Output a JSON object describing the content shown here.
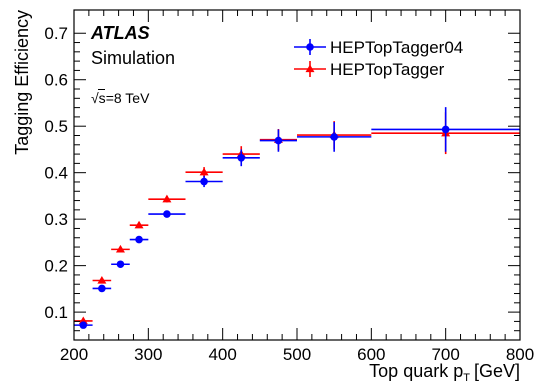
{
  "chart_data": {
    "type": "scatter",
    "xlabel": "Top quark p",
    "xlabel_sub": "T",
    "xlabel_unit": "[GeV]",
    "ylabel": "Tagging Efficiency",
    "xlim": [
      200,
      800
    ],
    "ylim": [
      0.04,
      0.75
    ],
    "x_ticks": [
      200,
      300,
      400,
      500,
      600,
      700,
      800
    ],
    "y_ticks": [
      0.1,
      0.2,
      0.3,
      0.4,
      0.5,
      0.6,
      0.7
    ],
    "y_tick_labels": [
      "0.1",
      "0.2",
      "0.3",
      "0.4",
      "0.5",
      "0.6",
      "0.7"
    ],
    "annotations": {
      "experiment": "ATLAS",
      "status": "Simulation",
      "energy_sqrt": "√s",
      "energy_value": "=8 TeV"
    },
    "legend_position": "top-right",
    "series": [
      {
        "name": "HEPTopTagger04",
        "color": "#0000ff",
        "marker": "circle",
        "points": [
          {
            "x": 212.5,
            "xlo": 200,
            "xhi": 225,
            "y": 0.072,
            "yerr": 0.006
          },
          {
            "x": 237.5,
            "xlo": 225,
            "xhi": 250,
            "y": 0.151,
            "yerr": 0.006
          },
          {
            "x": 262.5,
            "xlo": 250,
            "xhi": 275,
            "y": 0.203,
            "yerr": 0.006
          },
          {
            "x": 287.5,
            "xlo": 275,
            "xhi": 300,
            "y": 0.256,
            "yerr": 0.007
          },
          {
            "x": 325,
            "xlo": 300,
            "xhi": 350,
            "y": 0.311,
            "yerr": 0.007
          },
          {
            "x": 375,
            "xlo": 350,
            "xhi": 400,
            "y": 0.381,
            "yerr": 0.012
          },
          {
            "x": 425,
            "xlo": 400,
            "xhi": 450,
            "y": 0.432,
            "yerr": 0.018
          },
          {
            "x": 475,
            "xlo": 450,
            "xhi": 500,
            "y": 0.469,
            "yerr": 0.024
          },
          {
            "x": 550,
            "xlo": 500,
            "xhi": 600,
            "y": 0.477,
            "yerr": 0.032
          },
          {
            "x": 700,
            "xlo": 600,
            "xhi": 800,
            "y": 0.493,
            "yerr": 0.048
          }
        ]
      },
      {
        "name": "HEPTopTagger",
        "color": "#ff0000",
        "marker": "triangle",
        "points": [
          {
            "x": 212.5,
            "xlo": 200,
            "xhi": 225,
            "y": 0.081,
            "yerr": 0.005
          },
          {
            "x": 237.5,
            "xlo": 225,
            "xhi": 250,
            "y": 0.168,
            "yerr": 0.005
          },
          {
            "x": 262.5,
            "xlo": 250,
            "xhi": 275,
            "y": 0.235,
            "yerr": 0.006
          },
          {
            "x": 287.5,
            "xlo": 275,
            "xhi": 300,
            "y": 0.287,
            "yerr": 0.006
          },
          {
            "x": 325,
            "xlo": 300,
            "xhi": 350,
            "y": 0.343,
            "yerr": 0.007
          },
          {
            "x": 375,
            "xlo": 350,
            "xhi": 400,
            "y": 0.401,
            "yerr": 0.011
          },
          {
            "x": 425,
            "xlo": 400,
            "xhi": 450,
            "y": 0.44,
            "yerr": 0.017
          },
          {
            "x": 475,
            "xlo": 450,
            "xhi": 500,
            "y": 0.471,
            "yerr": 0.023
          },
          {
            "x": 550,
            "xlo": 500,
            "xhi": 600,
            "y": 0.481,
            "yerr": 0.03
          },
          {
            "x": 700,
            "xlo": 600,
            "xhi": 800,
            "y": 0.485,
            "yerr": 0.045
          }
        ]
      }
    ]
  }
}
